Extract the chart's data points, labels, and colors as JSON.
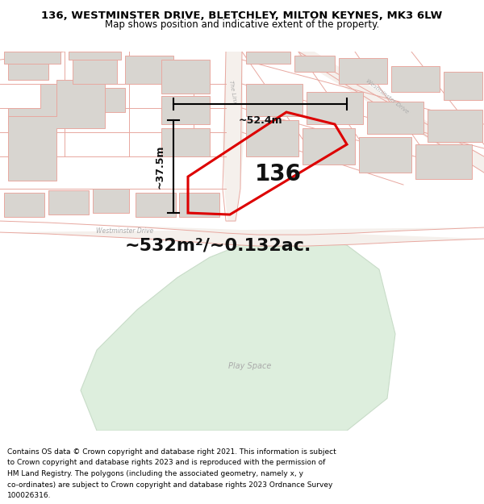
{
  "title_line1": "136, WESTMINSTER DRIVE, BLETCHLEY, MILTON KEYNES, MK3 6LW",
  "title_line2": "Map shows position and indicative extent of the property.",
  "area_label": "~532m²/~0.132ac.",
  "number_label": "136",
  "dim_width": "~52.4m",
  "dim_height": "~37.5m",
  "plot_color_fill": "none",
  "plot_color_edge": "#dd0000",
  "building_color": "#d8d5d0",
  "building_edge": "#e8a8a0",
  "road_outline": "#e8a8a0",
  "road_fill": "#f0ece8",
  "green_fill": "#ddeedd",
  "green_edge": "#c8dcc8",
  "map_bg": "#ffffff",
  "street_label_color": "#aaaaaa",
  "annotation_color": "#111111",
  "footer_lines": [
    "Contains OS data © Crown copyright and database right 2021. This information is subject",
    "to Crown copyright and database rights 2023 and is reproduced with the permission of",
    "HM Land Registry. The polygons (including the associated geometry, namely x, y",
    "co-ordinates) are subject to Crown copyright and database rights 2023 Ordnance Survey",
    "100026316."
  ],
  "title_fontsize": 9.5,
  "subtitle_fontsize": 8.5,
  "footer_fontsize": 6.5
}
